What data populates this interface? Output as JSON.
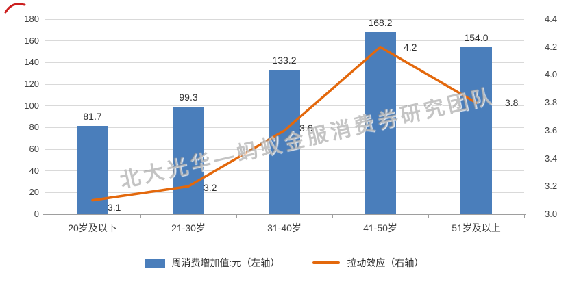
{
  "watermark": "北大光华—蚂蚁金服消费券研究团队",
  "colors": {
    "bar": "#4a7ebb",
    "line": "#e3680c",
    "gridline": "#d9d9d9",
    "axis": "#9e9e9e",
    "text": "#404040",
    "corner_mark": "#cc1f1f"
  },
  "chart_data": {
    "type": "combo",
    "title": "",
    "categories": [
      "20岁及以下",
      "21-30岁",
      "31-40岁",
      "41-50岁",
      "51岁及以上"
    ],
    "series": [
      {
        "name": "周消费增加值:元（左轴）",
        "type": "bar",
        "axis": "left",
        "color": "#4a7ebb",
        "values": [
          81.7,
          99.3,
          133.2,
          168.2,
          154.0
        ],
        "labels": [
          "81.7",
          "99.3",
          "133.2",
          "168.2",
          "154.0"
        ]
      },
      {
        "name": "拉动效应（右轴）",
        "type": "line",
        "axis": "right",
        "color": "#e3680c",
        "values": [
          3.1,
          3.2,
          3.6,
          4.2,
          3.8
        ],
        "labels": [
          "3.1",
          "3.2",
          "3.6",
          "4.2",
          "3.8"
        ]
      }
    ],
    "left_axis": {
      "min": 0,
      "max": 180,
      "step": 20
    },
    "right_axis": {
      "min": 3.0,
      "max": 4.4,
      "step": 0.2
    },
    "grid": true,
    "legend_position": "bottom"
  }
}
